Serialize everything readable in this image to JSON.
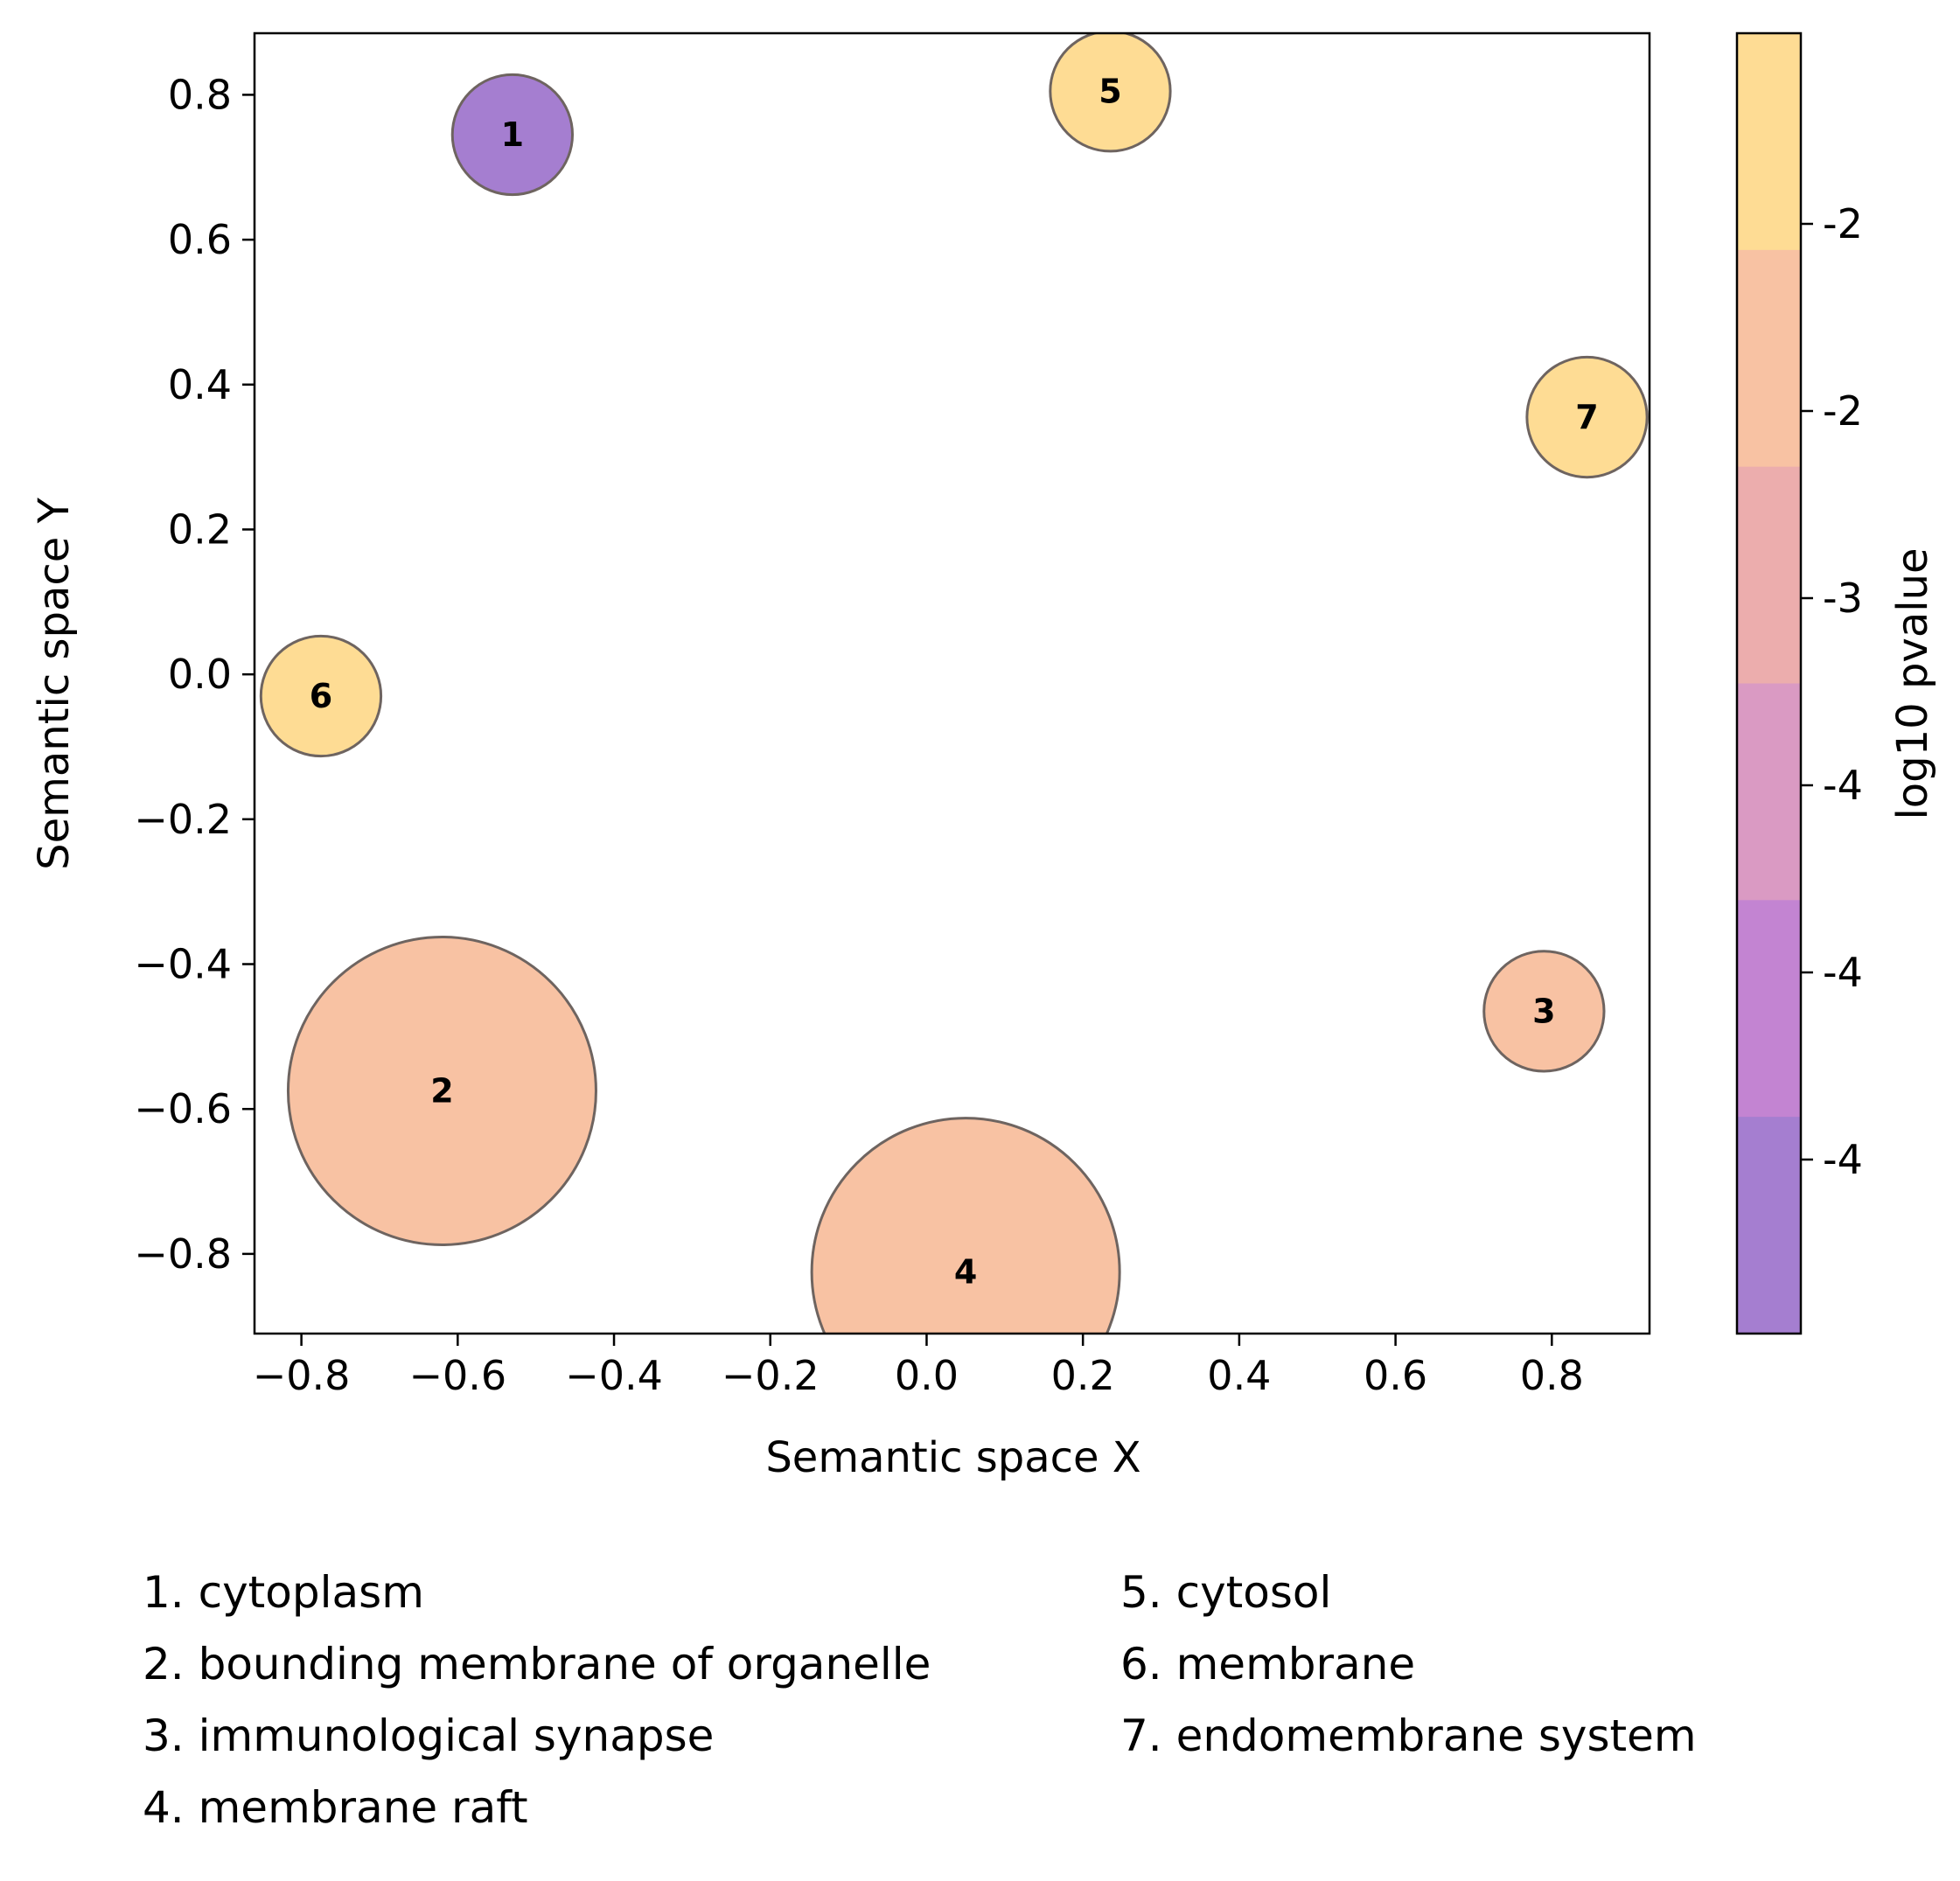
{
  "chart_data": {
    "type": "scatter",
    "title": "",
    "xlabel": "Semantic space X",
    "ylabel": "Semantic space Y",
    "xlim": [
      -0.86,
      0.925
    ],
    "ylim": [
      -0.91,
      0.885
    ],
    "x_ticks": [
      -0.8,
      -0.6,
      -0.4,
      -0.2,
      0.0,
      0.2,
      0.4,
      0.6,
      0.8
    ],
    "x_tick_labels": [
      "−0.8",
      "−0.6",
      "−0.4",
      "−0.2",
      "0.0",
      "0.2",
      "0.4",
      "0.6",
      "0.8"
    ],
    "y_ticks": [
      0.8,
      0.6,
      0.4,
      0.2,
      0.0,
      -0.2,
      -0.4,
      -0.6,
      -0.8
    ],
    "y_tick_labels": [
      "0.8",
      "0.6",
      "0.4",
      "0.2",
      "0.0",
      "−0.2",
      "−0.4",
      "−0.6",
      "−0.8"
    ],
    "grid": false,
    "points": [
      {
        "id": "1",
        "x": -0.53,
        "y": 0.745,
        "size": 0.12,
        "color": "#a57ed0"
      },
      {
        "id": "2",
        "x": -0.62,
        "y": -0.575,
        "size": 1.0,
        "color": "#f8c2a3"
      },
      {
        "id": "3",
        "x": 0.79,
        "y": -0.465,
        "size": 0.12,
        "color": "#f8c2a3"
      },
      {
        "id": "4",
        "x": 0.05,
        "y": -0.825,
        "size": 1.0,
        "color": "#f8c2a3"
      },
      {
        "id": "5",
        "x": 0.235,
        "y": 0.805,
        "size": 0.12,
        "color": "#fedc94"
      },
      {
        "id": "6",
        "x": -0.775,
        "y": -0.03,
        "size": 0.12,
        "color": "#fedc94"
      },
      {
        "id": "7",
        "x": 0.845,
        "y": 0.355,
        "size": 0.12,
        "color": "#fedc94"
      }
    ],
    "colorbar": {
      "label": "log10 pvalue",
      "bands_top_to_bottom": [
        "#fedc94",
        "#f8c2a3",
        "#ecadad",
        "#da9ac3",
        "#c384d2",
        "#a57ed0"
      ],
      "tick_labels": [
        "-2",
        "-2",
        "-3",
        "-4",
        "-4",
        "-4"
      ]
    },
    "legend": {
      "placement": "bottom",
      "columns": [
        [
          "1. cytoplasm",
          "2. bounding membrane of organelle",
          "3. immunological synapse",
          "4. membrane raft"
        ],
        [
          "5. cytosol",
          "6. membrane",
          "7. endomembrane system"
        ]
      ]
    }
  }
}
